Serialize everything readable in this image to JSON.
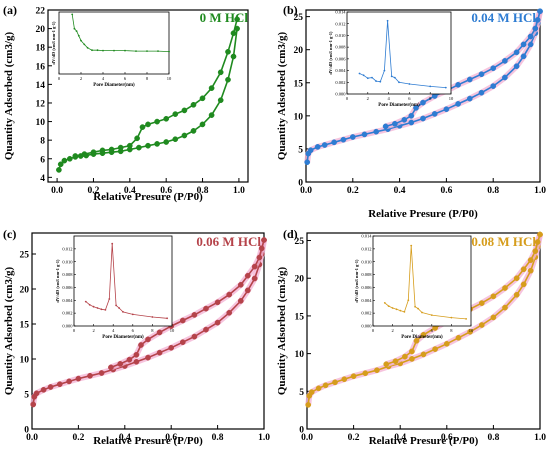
{
  "chart_data": [
    {
      "type": "line",
      "panel_label": "(a)",
      "title": "0 M HCl",
      "xlabel": "Relative Presure (P/P0)",
      "ylabel": "Quantity Adsorbed (cm3/g)",
      "xlim": [
        -0.05,
        1.05
      ],
      "ylim": [
        3.5,
        22
      ],
      "x_ticks": [
        "0.0",
        "0.2",
        "0.4",
        "0.6",
        "0.8",
        "1.0"
      ],
      "y_ticks": [
        "4",
        "6",
        "8",
        "10",
        "12",
        "14",
        "16",
        "18",
        "20",
        "22"
      ],
      "color": "#1f8a1f",
      "series": [
        {
          "name": "",
          "x": [
            0.01,
            0.02,
            0.04,
            0.07,
            0.1,
            0.13,
            0.16,
            0.2,
            0.25,
            0.3,
            0.35,
            0.4,
            0.45,
            0.5,
            0.55,
            0.6,
            0.65,
            0.7,
            0.75,
            0.8,
            0.85,
            0.9,
            0.94,
            0.97,
            0.99
          ],
          "y": [
            4.8,
            5.4,
            5.8,
            6.0,
            6.2,
            6.3,
            6.35,
            6.5,
            6.6,
            6.7,
            6.8,
            7.0,
            7.2,
            7.4,
            7.6,
            7.8,
            8.1,
            8.5,
            9.0,
            9.7,
            10.7,
            12.3,
            14.5,
            17.0,
            20.0
          ]
        },
        {
          "name": "",
          "x": [
            0.99,
            0.97,
            0.94,
            0.9,
            0.85,
            0.8,
            0.75,
            0.7,
            0.65,
            0.6,
            0.55,
            0.5,
            0.47,
            0.44,
            0.4,
            0.35,
            0.3,
            0.25,
            0.2,
            0.15,
            0.1
          ],
          "y": [
            21.0,
            19.5,
            17.5,
            15.3,
            13.6,
            12.5,
            11.8,
            11.2,
            10.8,
            10.3,
            10.0,
            9.7,
            9.4,
            8.2,
            7.4,
            7.2,
            7.0,
            6.9,
            6.7,
            6.5,
            6.3
          ]
        }
      ],
      "inset": {
        "xlabel": "Pore Diameter(nm)",
        "ylabel": "dV/dD (cm3 nm-1 g-1)",
        "xlim": [
          0,
          10
        ],
        "ylim": [
          0,
          0.0013
        ],
        "x_ticks": [
          "0",
          "2",
          "4",
          "6",
          "8",
          "10"
        ],
        "y_ticks": [],
        "x": [
          1.2,
          1.4,
          1.6,
          1.8,
          2.0,
          2.3,
          2.6,
          3.0,
          3.5,
          4.0,
          5.0,
          6.0,
          7.0,
          8.0,
          9.0,
          10.0
        ],
        "y": [
          0.00125,
          0.00095,
          0.0009,
          0.0008,
          0.0007,
          0.00062,
          0.00055,
          0.0005,
          0.0005,
          0.00049,
          0.00049,
          0.00049,
          0.00048,
          0.00048,
          0.00048,
          0.00047
        ]
      }
    },
    {
      "type": "line",
      "panel_label": "(b)",
      "title": "0.04 M HCl",
      "xlabel": "Relative Presure (P/P0)",
      "ylabel": "Quantity Adsorbed (cm3/g)",
      "xlim": [
        0,
        1
      ],
      "ylim": [
        0,
        26
      ],
      "x_ticks": [
        "0.0",
        "0.2",
        "0.4",
        "0.6",
        "0.8",
        "1.0"
      ],
      "y_ticks": [
        "0",
        "5",
        "10",
        "15",
        "20",
        "25"
      ],
      "color": "#2e7cd2",
      "series": [
        {
          "name": "",
          "x": [
            0.005,
            0.01,
            0.02,
            0.05,
            0.08,
            0.12,
            0.16,
            0.2,
            0.25,
            0.3,
            0.35,
            0.4,
            0.45,
            0.5,
            0.55,
            0.6,
            0.65,
            0.7,
            0.75,
            0.8,
            0.85,
            0.9,
            0.93,
            0.96,
            0.98,
            0.99,
            1.0
          ],
          "y": [
            3.0,
            4.3,
            4.8,
            5.3,
            5.6,
            6.0,
            6.4,
            6.8,
            7.2,
            7.6,
            8.0,
            8.5,
            9.0,
            9.6,
            10.3,
            11.0,
            11.8,
            12.6,
            13.5,
            14.5,
            15.8,
            17.5,
            19.0,
            20.8,
            22.5,
            24.0,
            25.8
          ]
        },
        {
          "name": "",
          "x": [
            1.0,
            0.99,
            0.98,
            0.96,
            0.93,
            0.9,
            0.85,
            0.8,
            0.75,
            0.7,
            0.65,
            0.6,
            0.55,
            0.5,
            0.47,
            0.45,
            0.42,
            0.38,
            0.34
          ],
          "y": [
            25.8,
            24.5,
            23.2,
            22.0,
            20.8,
            19.6,
            18.3,
            17.2,
            16.3,
            15.5,
            14.7,
            13.8,
            13.0,
            12.0,
            11.2,
            10.0,
            9.4,
            8.8,
            8.4
          ]
        }
      ],
      "inset": {
        "xlabel": "Pore Diameter(nm)",
        "ylabel": "dV/dD (cm3 nm-1 g-1)",
        "xlim": [
          0,
          10
        ],
        "ylim": [
          0,
          0.014
        ],
        "x_ticks": [
          "0",
          "2",
          "4",
          "6",
          "8",
          "10"
        ],
        "y_ticks": [
          "0.000",
          "0.002",
          "0.004",
          "0.006",
          "0.008",
          "0.010",
          "0.012",
          "0.014"
        ],
        "x": [
          1.2,
          1.6,
          2.0,
          2.4,
          2.8,
          3.2,
          3.6,
          3.9,
          4.3,
          4.6,
          5.0,
          6.0,
          8.0,
          9.5
        ],
        "y": [
          0.0035,
          0.0032,
          0.0027,
          0.0028,
          0.0022,
          0.0021,
          0.004,
          0.0125,
          0.003,
          0.0028,
          0.002,
          0.0017,
          0.0013,
          0.0011
        ]
      }
    },
    {
      "type": "line",
      "panel_label": "(c)",
      "title": "0.06 M HCl",
      "xlabel": "Relative Presure (P/P0)",
      "ylabel": "Quantity Adsorbed (cm3/g)",
      "xlim": [
        0,
        1
      ],
      "ylim": [
        0,
        28
      ],
      "x_ticks": [
        "0.0",
        "0.2",
        "0.4",
        "0.6",
        "0.8",
        "1.0"
      ],
      "y_ticks": [
        "0",
        "5",
        "10",
        "15",
        "20",
        "25"
      ],
      "color": "#b5434a",
      "series": [
        {
          "name": "",
          "x": [
            0.005,
            0.01,
            0.02,
            0.05,
            0.08,
            0.12,
            0.16,
            0.2,
            0.25,
            0.3,
            0.35,
            0.4,
            0.45,
            0.5,
            0.55,
            0.6,
            0.65,
            0.7,
            0.75,
            0.8,
            0.85,
            0.9,
            0.93,
            0.96,
            0.98,
            0.99,
            1.0
          ],
          "y": [
            3.5,
            4.6,
            5.1,
            5.6,
            6.0,
            6.4,
            6.8,
            7.2,
            7.6,
            8.0,
            8.5,
            9.0,
            9.6,
            10.2,
            10.9,
            11.6,
            12.4,
            13.2,
            14.2,
            15.2,
            16.6,
            18.3,
            19.8,
            21.5,
            23.5,
            25.0,
            27.0
          ]
        },
        {
          "name": "",
          "x": [
            1.0,
            0.99,
            0.98,
            0.96,
            0.93,
            0.9,
            0.85,
            0.8,
            0.75,
            0.7,
            0.65,
            0.6,
            0.55,
            0.5,
            0.47,
            0.45,
            0.42,
            0.38,
            0.34
          ],
          "y": [
            27.0,
            25.8,
            24.5,
            23.2,
            21.9,
            20.6,
            19.2,
            18.1,
            17.2,
            16.3,
            15.5,
            14.7,
            13.8,
            12.8,
            12.0,
            10.6,
            9.9,
            9.3,
            8.8
          ]
        }
      ],
      "inset": {
        "xlabel": "Pore Diameter(nm)",
        "ylabel": "dV/dD (cm3 nm-1 g-1)",
        "xlim": [
          0,
          10
        ],
        "ylim": [
          0,
          0.014
        ],
        "x_ticks": [
          "0",
          "2",
          "4",
          "6",
          "8",
          "10"
        ],
        "y_ticks": [
          "0.000",
          "0.002",
          "0.004",
          "0.006",
          "0.008",
          "0.010",
          "0.012"
        ],
        "x": [
          1.2,
          1.6,
          2.0,
          2.4,
          2.8,
          3.2,
          3.6,
          3.9,
          4.3,
          4.6,
          5.0,
          6.0,
          8.0,
          9.5
        ],
        "y": [
          0.0038,
          0.0033,
          0.003,
          0.0028,
          0.0026,
          0.0025,
          0.0042,
          0.0128,
          0.0032,
          0.0028,
          0.0022,
          0.0018,
          0.0014,
          0.0012
        ]
      }
    },
    {
      "type": "line",
      "panel_label": "(d)",
      "title": "0.08 M HCl",
      "xlabel": "Relative Presure (P/P0)",
      "ylabel": "Quantity Adsorbed (cm3/g)",
      "xlim": [
        0,
        1
      ],
      "ylim": [
        0,
        26
      ],
      "x_ticks": [
        "0.0",
        "0.2",
        "0.4",
        "0.6",
        "0.8",
        "1.0"
      ],
      "y_ticks": [
        "0",
        "5",
        "10",
        "15",
        "20",
        "25"
      ],
      "color": "#d69d1c",
      "series": [
        {
          "name": "",
          "x": [
            0.005,
            0.01,
            0.02,
            0.05,
            0.08,
            0.12,
            0.16,
            0.2,
            0.25,
            0.3,
            0.35,
            0.4,
            0.45,
            0.5,
            0.55,
            0.6,
            0.65,
            0.7,
            0.75,
            0.8,
            0.85,
            0.9,
            0.93,
            0.96,
            0.98,
            0.99,
            1.0
          ],
          "y": [
            3.2,
            4.4,
            4.9,
            5.4,
            5.8,
            6.2,
            6.6,
            7.0,
            7.4,
            7.8,
            8.3,
            8.7,
            9.3,
            9.9,
            10.6,
            11.3,
            12.1,
            12.9,
            13.8,
            14.8,
            16.1,
            17.8,
            19.2,
            21.0,
            22.8,
            24.2,
            25.8
          ]
        },
        {
          "name": "",
          "x": [
            1.0,
            0.99,
            0.98,
            0.96,
            0.93,
            0.9,
            0.85,
            0.8,
            0.75,
            0.7,
            0.65,
            0.6,
            0.55,
            0.5,
            0.47,
            0.45,
            0.42,
            0.38,
            0.34
          ],
          "y": [
            25.8,
            24.8,
            23.6,
            22.4,
            21.2,
            20.0,
            18.7,
            17.6,
            16.7,
            15.9,
            15.1,
            14.3,
            13.4,
            12.5,
            11.7,
            10.3,
            9.6,
            9.0,
            8.6
          ]
        }
      ],
      "inset": {
        "xlabel": "Pore Diameter(nm)",
        "ylabel": "dV/dD (cm3 nm-1 g-1)",
        "xlim": [
          0,
          10
        ],
        "ylim": [
          0,
          0.014
        ],
        "x_ticks": [
          "0",
          "2",
          "4",
          "6",
          "8",
          "10"
        ],
        "y_ticks": [
          "0.000",
          "0.002",
          "0.004",
          "0.006",
          "0.008",
          "0.010",
          "0.012",
          "0.014"
        ],
        "x": [
          1.2,
          1.6,
          2.0,
          2.4,
          2.8,
          3.2,
          3.6,
          3.9,
          4.3,
          4.6,
          5.0,
          6.0,
          8.0,
          9.5
        ],
        "y": [
          0.0036,
          0.0031,
          0.0028,
          0.0026,
          0.0024,
          0.0022,
          0.004,
          0.0125,
          0.003,
          0.0027,
          0.0021,
          0.0017,
          0.0013,
          0.0011
        ]
      }
    }
  ]
}
